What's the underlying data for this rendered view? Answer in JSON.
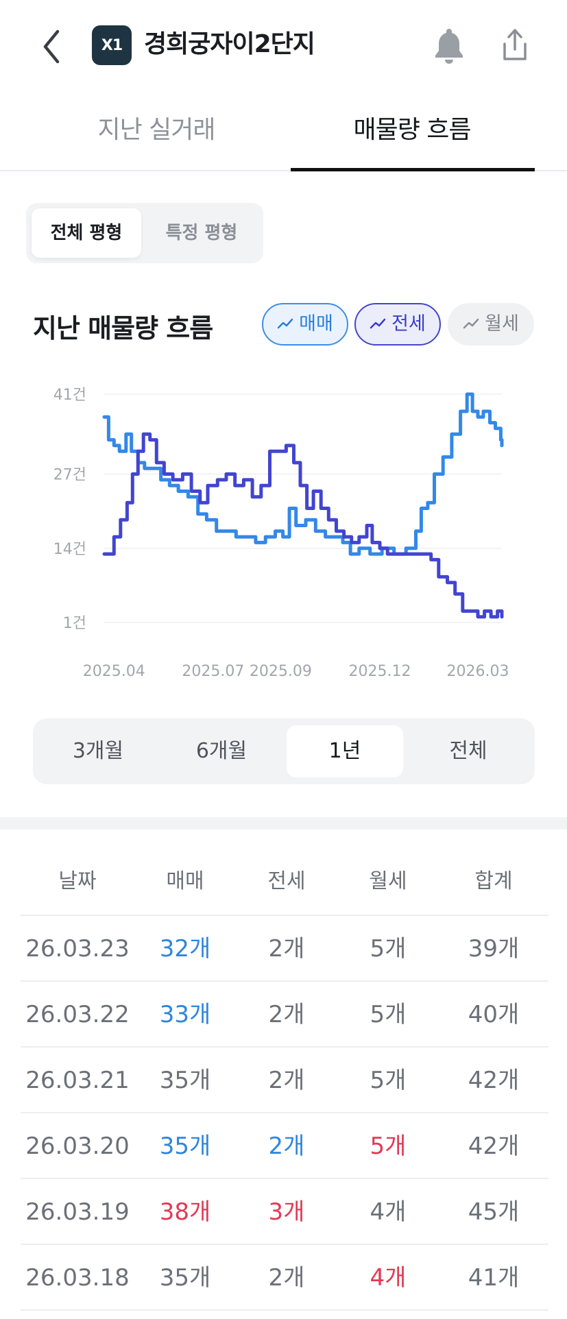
{
  "header": {
    "logo_text": "X1",
    "title": "경희궁자이2단지"
  },
  "tabs": {
    "past_trades": "지난 실거래",
    "listing_flow": "매물량 흐름"
  },
  "pyeong_filter": {
    "all": "전체 평형",
    "specific": "특정 평형"
  },
  "chart_section": {
    "title": "지난 매물량 흐름",
    "chips": {
      "sale": "매매",
      "jeonse": "전세",
      "monthly": "월세"
    }
  },
  "colors": {
    "sale": "#3388e8",
    "jeonse": "#4245d0",
    "up": "#2f86dd",
    "down": "#e13a56"
  },
  "chart_data": {
    "type": "line",
    "title": "지난 매물량 흐름",
    "y_ticks": [
      "41건",
      "27건",
      "14건",
      "1건"
    ],
    "y_tick_values": [
      41,
      27,
      14,
      1
    ],
    "ylim": [
      1,
      41
    ],
    "x_ticks": [
      "2025.04",
      "2025.07",
      "2025.09",
      "2025.12",
      "2026.03"
    ],
    "x_tick_values": [
      "2025-04-01",
      "2025-07-01",
      "2025-09-01",
      "2025-12-01",
      "2026-03-01"
    ],
    "x_range": [
      "2025-03-23",
      "2026-03-23"
    ],
    "grid": true,
    "series": [
      {
        "name": "매매",
        "color": "#3388e8",
        "points": [
          [
            "2025-03-23",
            37
          ],
          [
            "2025-03-27",
            33
          ],
          [
            "2025-04-01",
            32
          ],
          [
            "2025-04-06",
            31
          ],
          [
            "2025-04-12",
            34
          ],
          [
            "2025-04-17",
            31
          ],
          [
            "2025-04-23",
            29
          ],
          [
            "2025-04-29",
            28
          ],
          [
            "2025-05-06",
            28
          ],
          [
            "2025-05-14",
            26
          ],
          [
            "2025-05-22",
            25
          ],
          [
            "2025-05-30",
            24
          ],
          [
            "2025-06-08",
            23
          ],
          [
            "2025-06-17",
            20
          ],
          [
            "2025-06-25",
            19
          ],
          [
            "2025-07-04",
            17
          ],
          [
            "2025-07-13",
            17
          ],
          [
            "2025-07-22",
            16
          ],
          [
            "2025-07-31",
            16
          ],
          [
            "2025-08-09",
            15
          ],
          [
            "2025-08-18",
            16
          ],
          [
            "2025-08-27",
            17
          ],
          [
            "2025-09-03",
            16
          ],
          [
            "2025-09-09",
            21
          ],
          [
            "2025-09-15",
            18
          ],
          [
            "2025-09-24",
            19
          ],
          [
            "2025-10-03",
            17
          ],
          [
            "2025-10-12",
            16
          ],
          [
            "2025-10-21",
            16
          ],
          [
            "2025-10-28",
            15
          ],
          [
            "2025-11-04",
            13
          ],
          [
            "2025-11-12",
            14
          ],
          [
            "2025-11-22",
            13
          ],
          [
            "2025-12-03",
            14
          ],
          [
            "2025-12-14",
            13
          ],
          [
            "2025-12-25",
            14
          ],
          [
            "2026-01-03",
            17
          ],
          [
            "2026-01-08",
            21
          ],
          [
            "2026-01-14",
            22
          ],
          [
            "2026-01-20",
            27
          ],
          [
            "2026-01-28",
            30
          ],
          [
            "2026-02-05",
            34
          ],
          [
            "2026-02-13",
            38
          ],
          [
            "2026-02-19",
            41
          ],
          [
            "2026-02-24",
            38
          ],
          [
            "2026-03-01",
            37
          ],
          [
            "2026-03-06",
            38
          ],
          [
            "2026-03-12",
            36
          ],
          [
            "2026-03-17",
            35
          ],
          [
            "2026-03-20",
            35
          ],
          [
            "2026-03-22",
            33
          ],
          [
            "2026-03-23",
            32
          ]
        ]
      },
      {
        "name": "전세",
        "color": "#4245d0",
        "points": [
          [
            "2025-03-23",
            13
          ],
          [
            "2025-03-27",
            13
          ],
          [
            "2025-04-01",
            16
          ],
          [
            "2025-04-07",
            19
          ],
          [
            "2025-04-13",
            22
          ],
          [
            "2025-04-18",
            27
          ],
          [
            "2025-04-23",
            31
          ],
          [
            "2025-04-28",
            34
          ],
          [
            "2025-05-04",
            33
          ],
          [
            "2025-05-10",
            29
          ],
          [
            "2025-05-17",
            27
          ],
          [
            "2025-05-25",
            26
          ],
          [
            "2025-06-03",
            27
          ],
          [
            "2025-06-11",
            24
          ],
          [
            "2025-06-19",
            22
          ],
          [
            "2025-06-26",
            25
          ],
          [
            "2025-07-05",
            26
          ],
          [
            "2025-07-13",
            27
          ],
          [
            "2025-07-21",
            25
          ],
          [
            "2025-07-29",
            26
          ],
          [
            "2025-08-06",
            23
          ],
          [
            "2025-08-14",
            25
          ],
          [
            "2025-08-22",
            31
          ],
          [
            "2025-08-30",
            31
          ],
          [
            "2025-09-06",
            32
          ],
          [
            "2025-09-13",
            29
          ],
          [
            "2025-09-19",
            25
          ],
          [
            "2025-09-25",
            21
          ],
          [
            "2025-10-01",
            24
          ],
          [
            "2025-10-08",
            21
          ],
          [
            "2025-10-15",
            19
          ],
          [
            "2025-10-22",
            17
          ],
          [
            "2025-10-29",
            16
          ],
          [
            "2025-11-05",
            15
          ],
          [
            "2025-11-12",
            16
          ],
          [
            "2025-11-19",
            18
          ],
          [
            "2025-11-24",
            15
          ],
          [
            "2025-12-01",
            14
          ],
          [
            "2025-12-08",
            13
          ],
          [
            "2025-12-16",
            13
          ],
          [
            "2025-12-24",
            13
          ],
          [
            "2026-01-02",
            13
          ],
          [
            "2026-01-10",
            13
          ],
          [
            "2026-01-17",
            12
          ],
          [
            "2026-01-24",
            9
          ],
          [
            "2026-02-01",
            8
          ],
          [
            "2026-02-08",
            6
          ],
          [
            "2026-02-15",
            3
          ],
          [
            "2026-02-22",
            3
          ],
          [
            "2026-03-01",
            2
          ],
          [
            "2026-03-07",
            3
          ],
          [
            "2026-03-13",
            2
          ],
          [
            "2026-03-19",
            3
          ],
          [
            "2026-03-23",
            2
          ]
        ]
      }
    ]
  },
  "period_selector": {
    "options": [
      "3개월",
      "6개월",
      "1년",
      "전체"
    ],
    "selected": "1년"
  },
  "table": {
    "headers": {
      "date": "날짜",
      "sale": "매매",
      "jeonse": "전세",
      "monthly": "월세",
      "total": "합계"
    },
    "rows": [
      {
        "date": "26.03.23",
        "sale": "32개",
        "jeonse": "2개",
        "monthly": "5개",
        "total": "39개",
        "sale_color": "blue",
        "jeonse_color": "",
        "monthly_color": ""
      },
      {
        "date": "26.03.22",
        "sale": "33개",
        "jeonse": "2개",
        "monthly": "5개",
        "total": "40개",
        "sale_color": "blue",
        "jeonse_color": "",
        "monthly_color": ""
      },
      {
        "date": "26.03.21",
        "sale": "35개",
        "jeonse": "2개",
        "monthly": "5개",
        "total": "42개",
        "sale_color": "",
        "jeonse_color": "",
        "monthly_color": ""
      },
      {
        "date": "26.03.20",
        "sale": "35개",
        "jeonse": "2개",
        "monthly": "5개",
        "total": "42개",
        "sale_color": "blue",
        "jeonse_color": "blue",
        "monthly_color": "red"
      },
      {
        "date": "26.03.19",
        "sale": "38개",
        "jeonse": "3개",
        "monthly": "4개",
        "total": "45개",
        "sale_color": "red",
        "jeonse_color": "red",
        "monthly_color": ""
      },
      {
        "date": "26.03.18",
        "sale": "35개",
        "jeonse": "2개",
        "monthly": "4개",
        "total": "41개",
        "sale_color": "",
        "jeonse_color": "",
        "monthly_color": "red"
      }
    ]
  }
}
